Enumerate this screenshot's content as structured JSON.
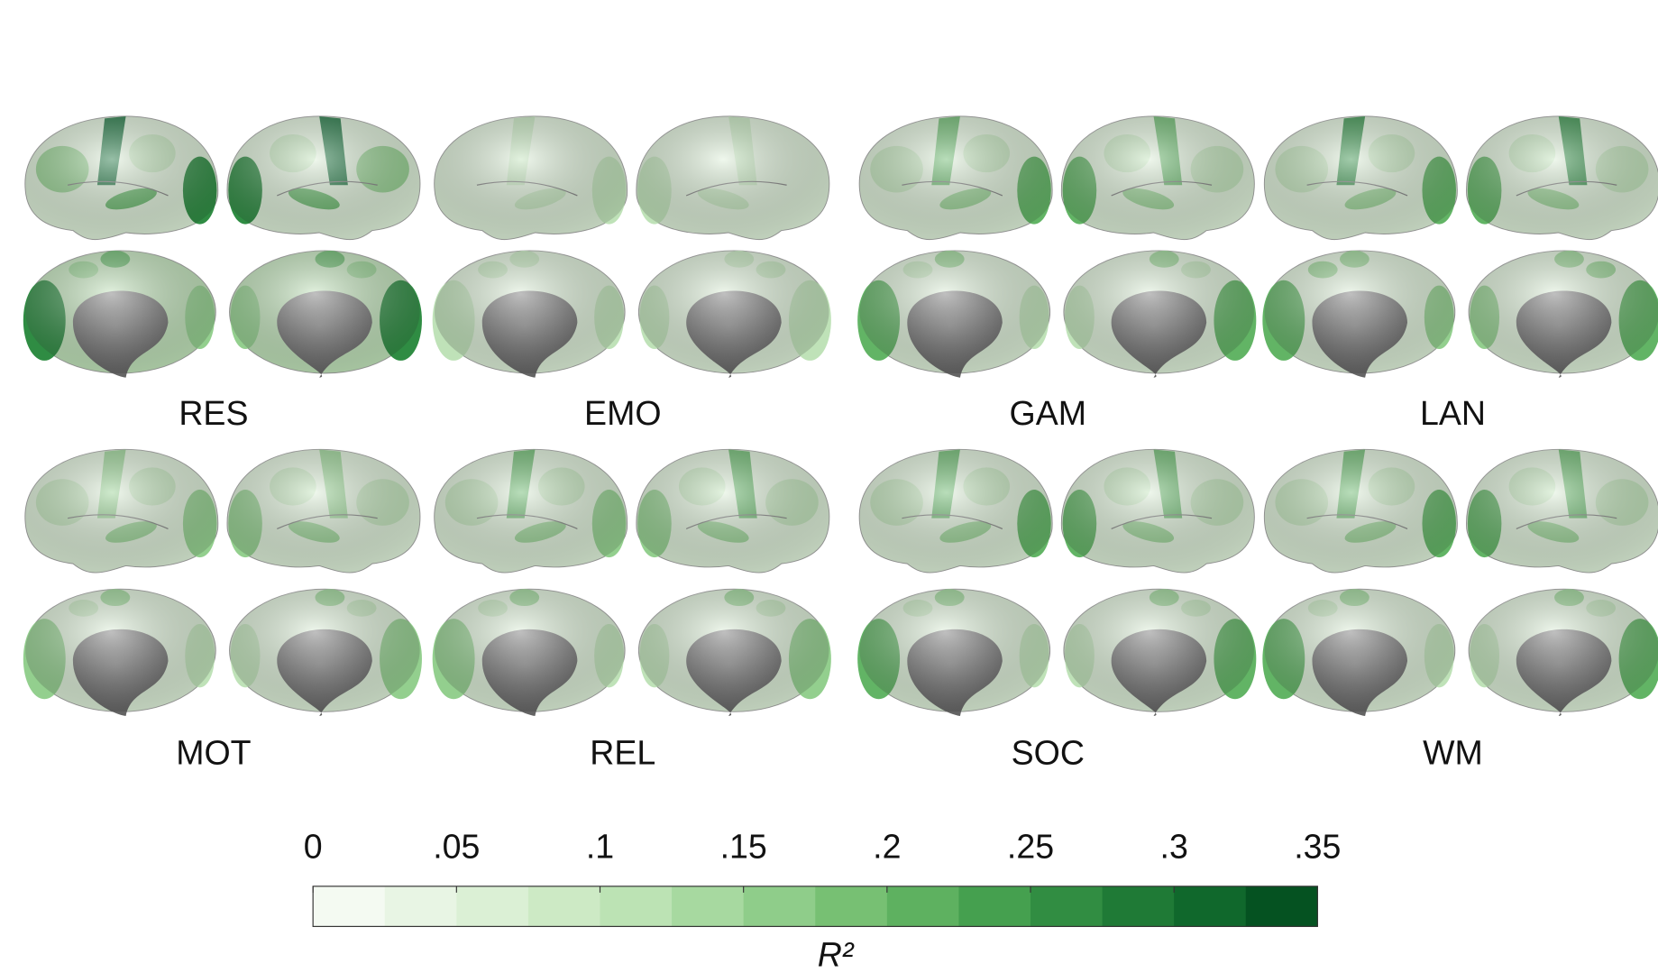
{
  "panels": [
    {
      "label": "RES"
    },
    {
      "label": "EMO"
    },
    {
      "label": "GAM"
    },
    {
      "label": "LAN"
    },
    {
      "label": "MOT"
    },
    {
      "label": "REL"
    },
    {
      "label": "SOC"
    },
    {
      "label": "WM"
    }
  ],
  "colorbar": {
    "label": "R²",
    "lim": [
      0,
      0.35
    ],
    "ticks": [
      0,
      {
        "value": 0.05,
        "label": ".05"
      },
      {
        "value": 0.1,
        "label": ".1"
      },
      {
        "value": 0.15,
        "label": ".15"
      },
      {
        "value": 0.2,
        "label": ".2"
      },
      {
        "value": 0.25,
        "label": ".25"
      },
      {
        "value": 0.3,
        "label": ".3"
      },
      {
        "value": 0.35,
        "label": ".35"
      }
    ],
    "colors": [
      "#f4faf2",
      "#e8f5e4",
      "#dbf0d5",
      "#cdeac5",
      "#bce3b4",
      "#a7d9a0",
      "#8fcd8a",
      "#77c073",
      "#5eb160",
      "#45a04f",
      "#318d42",
      "#1f7a36",
      "#10682c",
      "#055221"
    ]
  }
}
